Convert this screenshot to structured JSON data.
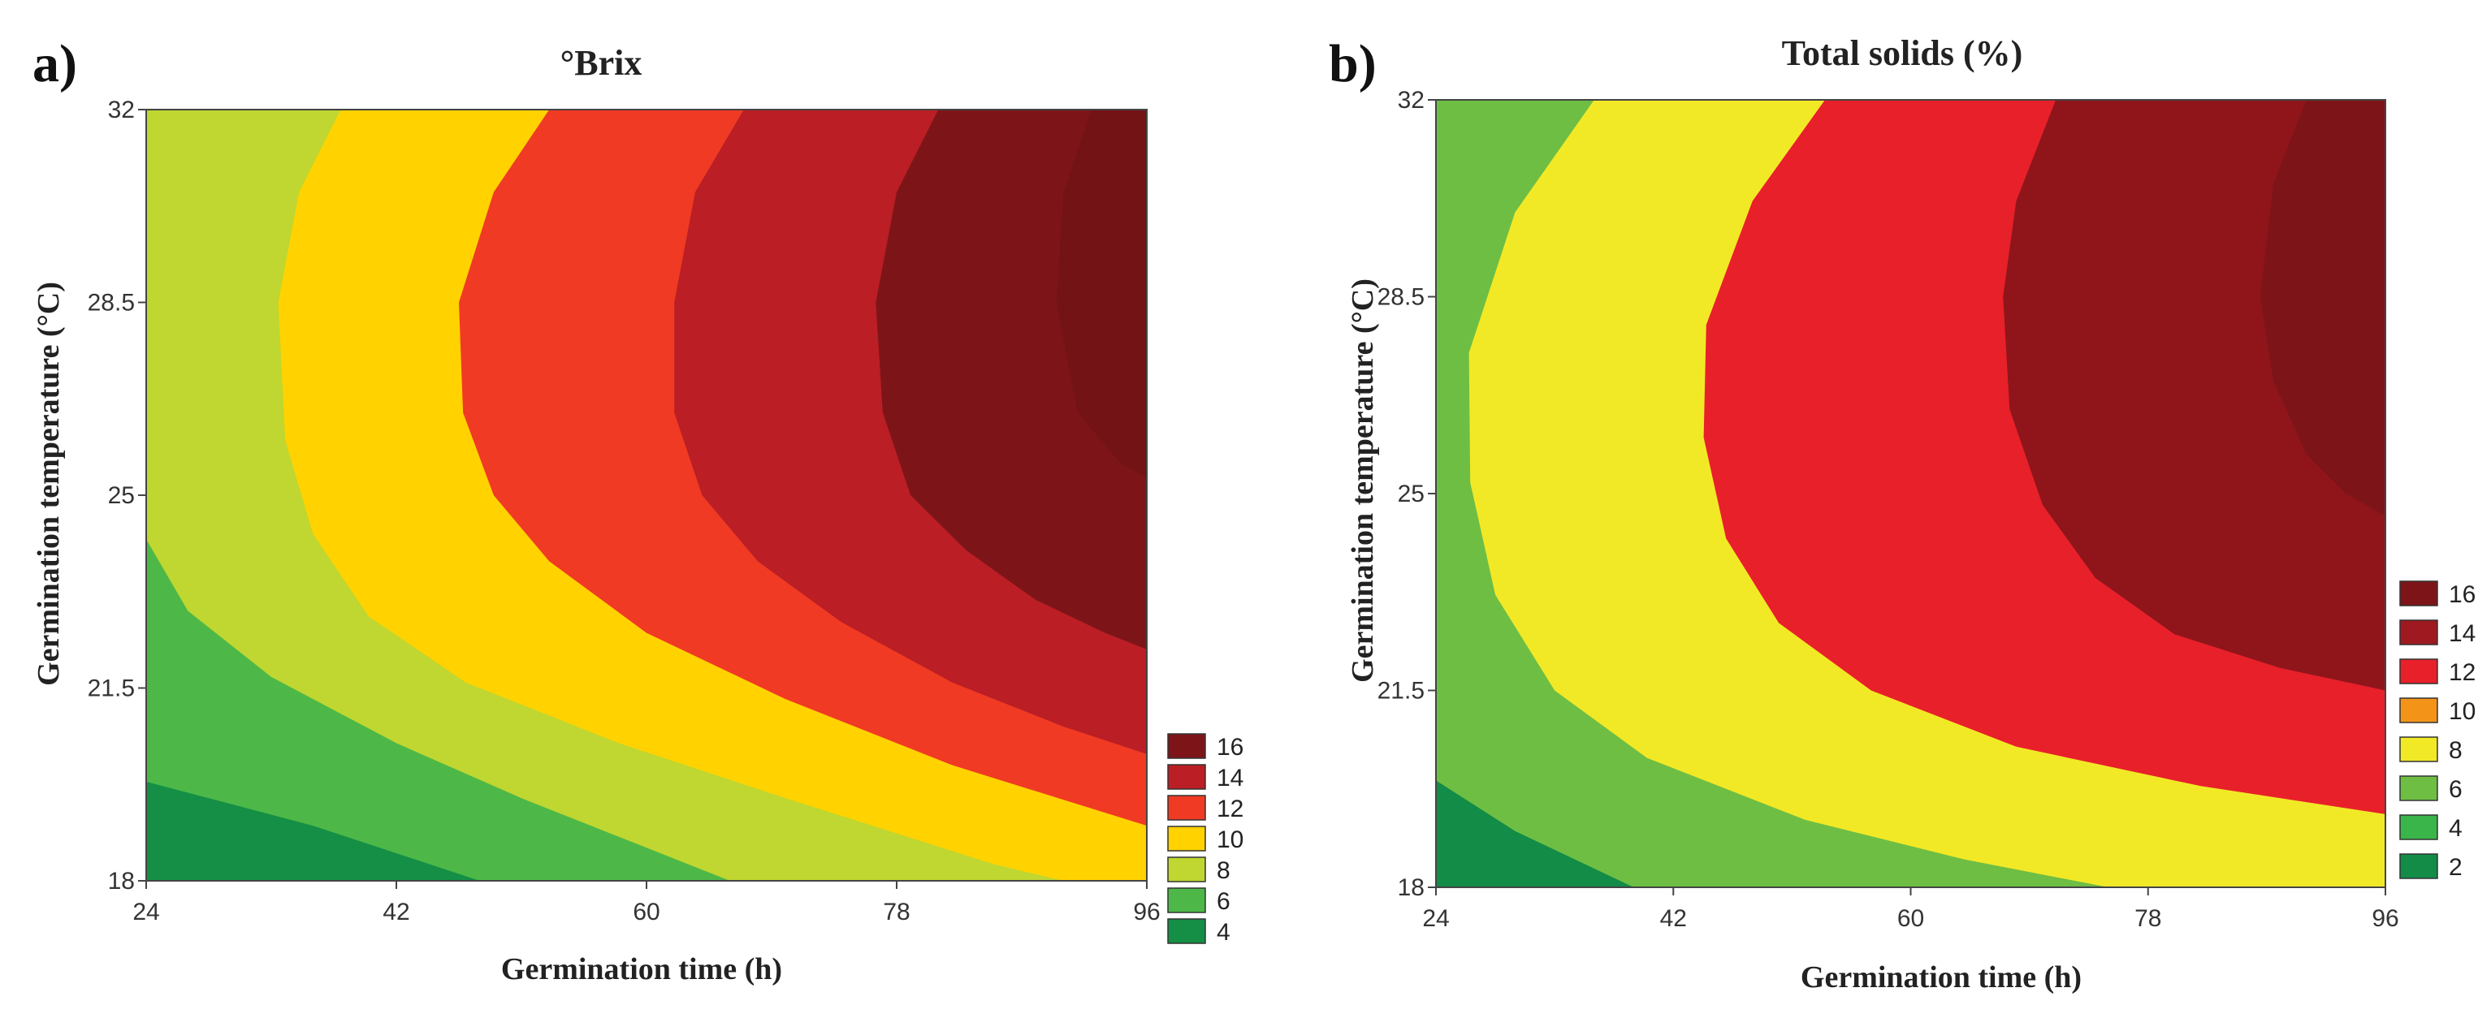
{
  "chart_data": [
    {
      "type": "heatmap",
      "panel_label": "a)",
      "title": "°Brix",
      "xlabel": "Germination time (h)",
      "ylabel": "Germination temperature (°C)",
      "x_ticks": [
        24,
        42,
        60,
        78,
        96
      ],
      "y_ticks": [
        18,
        21.5,
        25,
        28.5,
        32
      ],
      "xlim": [
        24,
        96
      ],
      "ylim": [
        18,
        32
      ],
      "legend_position": "bottom-right",
      "legend": [
        {
          "label": "16",
          "color": "#7d1518"
        },
        {
          "label": "14",
          "color": "#bb1e24"
        },
        {
          "label": "12",
          "color": "#f03a24"
        },
        {
          "label": "10",
          "color": "#ffd200"
        },
        {
          "label": "8",
          "color": "#bfd730"
        },
        {
          "label": "6",
          "color": "#4db848"
        },
        {
          "label": "4",
          "color": "#148f45"
        }
      ],
      "contours": [
        {
          "level": 4,
          "color": "#148f45",
          "from": null
        },
        {
          "level": 6,
          "color": "#4db848",
          "from": [
            [
              24,
              19.8
            ],
            [
              36,
              19.0
            ],
            [
              48,
              18.0
            ]
          ]
        },
        {
          "level": 8,
          "color": "#bfd730",
          "from": [
            [
              24,
              24.2
            ],
            [
              27,
              22.9
            ],
            [
              33,
              21.7
            ],
            [
              42,
              20.5
            ],
            [
              51,
              19.5
            ],
            [
              60,
              18.6
            ],
            [
              66,
              18.0
            ]
          ]
        },
        {
          "level": 10,
          "color": "#ffd200",
          "from": [
            [
              38,
              32
            ],
            [
              35,
              30.5
            ],
            [
              33.5,
              28.5
            ],
            [
              34,
              26.0
            ],
            [
              36,
              24.3
            ],
            [
              40,
              22.8
            ],
            [
              47,
              21.6
            ],
            [
              58,
              20.5
            ],
            [
              70,
              19.5
            ],
            [
              85,
              18.3
            ],
            [
              90,
              18.0
            ]
          ]
        },
        {
          "level": 12,
          "color": "#f03a24",
          "from": [
            [
              53,
              32
            ],
            [
              49,
              30.5
            ],
            [
              46.5,
              28.5
            ],
            [
              46.8,
              26.5
            ],
            [
              49,
              25.0
            ],
            [
              53,
              23.8
            ],
            [
              60,
              22.5
            ],
            [
              70,
              21.3
            ],
            [
              82,
              20.1
            ],
            [
              96,
              19.0
            ]
          ]
        },
        {
          "level": 14,
          "color": "#bb1e24",
          "from": [
            [
              67,
              32
            ],
            [
              63.5,
              30.5
            ],
            [
              62,
              28.5
            ],
            [
              62,
              26.5
            ],
            [
              64,
              25.0
            ],
            [
              68,
              23.8
            ],
            [
              74,
              22.7
            ],
            [
              82,
              21.6
            ],
            [
              90,
              20.8
            ],
            [
              96,
              20.3
            ]
          ]
        },
        {
          "level": 16,
          "color": "#7d1518",
          "from": [
            [
              81,
              32
            ],
            [
              78,
              30.5
            ],
            [
              76.5,
              28.5
            ],
            [
              77,
              26.5
            ],
            [
              79,
              25.0
            ],
            [
              83,
              24.0
            ],
            [
              88,
              23.1
            ],
            [
              93,
              22.5
            ],
            [
              96,
              22.2
            ]
          ]
        },
        {
          "level": 17,
          "color": "#731316",
          "from": [
            [
              92,
              32
            ],
            [
              90,
              30.5
            ],
            [
              89.5,
              28.5
            ],
            [
              91,
              26.5
            ],
            [
              94,
              25.6
            ],
            [
              96,
              25.3
            ]
          ]
        }
      ]
    },
    {
      "type": "heatmap",
      "panel_label": "b)",
      "title": "Total solids (%)",
      "xlabel": "Germination time (h)",
      "ylabel": "Germination temperature (°C)",
      "x_ticks": [
        24,
        42,
        60,
        78,
        96
      ],
      "y_ticks": [
        18,
        21.5,
        25,
        28.5,
        32
      ],
      "xlim": [
        24,
        96
      ],
      "ylim": [
        18,
        32
      ],
      "legend_position": "bottom-right",
      "legend": [
        {
          "label": "16",
          "color": "#7d1518"
        },
        {
          "label": "14",
          "color": "#9e1a20"
        },
        {
          "label": "12",
          "color": "#e8202a"
        },
        {
          "label": "10",
          "color": "#f39419"
        },
        {
          "label": "8",
          "color": "#f2e926"
        },
        {
          "label": "6",
          "color": "#6ebe44"
        },
        {
          "label": "4",
          "color": "#3ab54a"
        },
        {
          "label": "2",
          "color": "#128c47"
        }
      ],
      "contours": [
        {
          "level": 2,
          "color": "#128c47",
          "from": null
        },
        {
          "level": 6,
          "color": "#6ebe44",
          "from": [
            [
              24,
              19.9
            ],
            [
              30,
              19.0
            ],
            [
              39,
              18.0
            ]
          ]
        },
        {
          "level": 8,
          "color": "#f2e926",
          "from": [
            [
              36,
              32
            ],
            [
              30,
              30.0
            ],
            [
              26.5,
              27.5
            ],
            [
              26.6,
              25.2
            ],
            [
              28.5,
              23.2
            ],
            [
              33,
              21.5
            ],
            [
              40,
              20.3
            ],
            [
              52,
              19.2
            ],
            [
              64,
              18.5
            ],
            [
              75,
              18.0
            ]
          ]
        },
        {
          "level": 12,
          "color": "#e8202a",
          "from": [
            [
              53.5,
              32
            ],
            [
              48,
              30.2
            ],
            [
              44.5,
              28.0
            ],
            [
              44.3,
              26.0
            ],
            [
              46,
              24.2
            ],
            [
              50,
              22.7
            ],
            [
              57,
              21.5
            ],
            [
              68,
              20.5
            ],
            [
              82,
              19.8
            ],
            [
              96,
              19.3
            ]
          ]
        },
        {
          "level": 16,
          "color": "#8f151b",
          "from": [
            [
              71,
              32
            ],
            [
              68,
              30.2
            ],
            [
              67,
              28.5
            ],
            [
              67.5,
              26.5
            ],
            [
              70,
              24.8
            ],
            [
              74,
              23.5
            ],
            [
              80,
              22.5
            ],
            [
              88,
              21.9
            ],
            [
              96,
              21.5
            ]
          ]
        },
        {
          "level": 17,
          "color": "#7d1418",
          "from": [
            [
              90,
              32
            ],
            [
              87.5,
              30.5
            ],
            [
              86.5,
              28.5
            ],
            [
              87.5,
              27.0
            ],
            [
              90,
              25.7
            ],
            [
              93,
              25.0
            ],
            [
              96,
              24.6
            ]
          ]
        }
      ]
    }
  ]
}
